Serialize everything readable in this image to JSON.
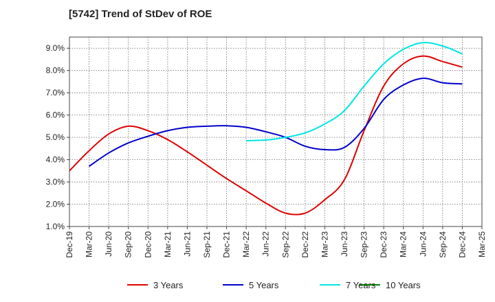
{
  "chart_data": {
    "type": "line",
    "title": "[5742]  Trend of StDev of ROE",
    "x": [
      "Dec-19",
      "Mar-20",
      "Jun-20",
      "Sep-20",
      "Dec-20",
      "Mar-21",
      "Jun-21",
      "Sep-21",
      "Dec-21",
      "Mar-22",
      "Jun-22",
      "Sep-22",
      "Dec-22",
      "Mar-23",
      "Jun-23",
      "Sep-23",
      "Dec-23",
      "Mar-24",
      "Jun-24",
      "Sep-24",
      "Dec-24",
      "Mar-25"
    ],
    "y_ticks": [
      "1.0%",
      "2.0%",
      "3.0%",
      "4.0%",
      "5.0%",
      "6.0%",
      "7.0%",
      "8.0%",
      "9.0%"
    ],
    "ylim": [
      1.0,
      9.5
    ],
    "grid": true,
    "legend_position": "bottom",
    "series": [
      {
        "name": "3 Years",
        "color": "#dd0000",
        "values": [
          3.5,
          4.4,
          5.15,
          5.5,
          5.3,
          4.9,
          4.35,
          3.75,
          3.15,
          2.6,
          2.05,
          1.6,
          1.6,
          2.2,
          3.1,
          5.3,
          7.3,
          8.3,
          8.65,
          8.4,
          8.15,
          null
        ]
      },
      {
        "name": "5 Years",
        "color": "#0000cc",
        "values": [
          null,
          3.7,
          4.3,
          4.75,
          5.05,
          5.3,
          5.45,
          5.5,
          5.52,
          5.45,
          5.25,
          5.0,
          4.6,
          4.45,
          4.55,
          5.4,
          6.7,
          7.35,
          7.65,
          7.45,
          7.4,
          null
        ]
      },
      {
        "name": "7 Years",
        "color": "#00e5e5",
        "values": [
          null,
          null,
          null,
          null,
          null,
          null,
          null,
          null,
          null,
          4.85,
          4.88,
          5.0,
          5.2,
          5.6,
          6.2,
          7.3,
          8.3,
          8.95,
          9.25,
          9.1,
          8.75,
          null
        ]
      },
      {
        "name": "10 Years",
        "color": "#008000",
        "values": [
          null,
          null,
          null,
          null,
          null,
          null,
          null,
          null,
          null,
          null,
          null,
          null,
          null,
          null,
          null,
          null,
          null,
          null,
          null,
          null,
          null,
          null
        ]
      }
    ]
  }
}
